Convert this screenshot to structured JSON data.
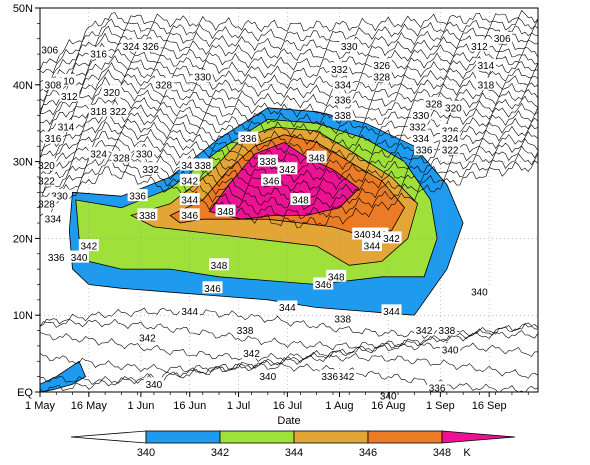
{
  "chart_data": {
    "type": "heatmap",
    "title": "",
    "xlabel": "Date",
    "ylabel": "",
    "x_ticks": [
      "1 May",
      "16 May",
      "1 Jun",
      "16 Jun",
      "1 Jul",
      "16 Jul",
      "1 Aug",
      "16 Aug",
      "1 Sep",
      "16 Sep"
    ],
    "x_tick_days": [
      0,
      15,
      31,
      46,
      61,
      76,
      92,
      107,
      123,
      138
    ],
    "xlim_days": [
      0,
      153
    ],
    "y_ticks": [
      "EQ",
      "10N",
      "20N",
      "30N",
      "40N",
      "50N"
    ],
    "y_tick_values": [
      0,
      10,
      20,
      30,
      40,
      50
    ],
    "ylim": [
      0,
      50
    ],
    "grid": "dotted",
    "colorbar": {
      "unit": "K",
      "labels": [
        340,
        342,
        344,
        346,
        348
      ],
      "bands": [
        {
          "from": 340,
          "to": 342,
          "color": "#1e9bef"
        },
        {
          "from": 342,
          "to": 344,
          "color": "#9fe13a"
        },
        {
          "from": 344,
          "to": 346,
          "color": "#e3a535"
        },
        {
          "from": 346,
          "to": 348,
          "color": "#ec7b25"
        },
        {
          "from": 348,
          "to": 350,
          "color": "#ec1292"
        }
      ],
      "below_color": "#ffffff",
      "above_color": "#ec1292"
    },
    "filled_regions": [
      {
        "level": 340,
        "points": [
          [
            10,
            26
          ],
          [
            25,
            25.5
          ],
          [
            40,
            28
          ],
          [
            55,
            33
          ],
          [
            70,
            37
          ],
          [
            85,
            36.5
          ],
          [
            100,
            35
          ],
          [
            115,
            32
          ],
          [
            125,
            27
          ],
          [
            130,
            22
          ],
          [
            125,
            16
          ],
          [
            115,
            10
          ],
          [
            100,
            10.5
          ],
          [
            85,
            11
          ],
          [
            70,
            12
          ],
          [
            55,
            12.5
          ],
          [
            40,
            13
          ],
          [
            25,
            13.5
          ],
          [
            15,
            14
          ],
          [
            10,
            16
          ],
          [
            9,
            21
          ]
        ]
      },
      {
        "level": 342,
        "points": [
          [
            11,
            25
          ],
          [
            25,
            24
          ],
          [
            40,
            26.5
          ],
          [
            55,
            31.5
          ],
          [
            70,
            35.5
          ],
          [
            85,
            35
          ],
          [
            100,
            33
          ],
          [
            112,
            30
          ],
          [
            120,
            25
          ],
          [
            122,
            20
          ],
          [
            118,
            15
          ],
          [
            105,
            15
          ],
          [
            85,
            14
          ],
          [
            70,
            14.5
          ],
          [
            55,
            15
          ],
          [
            40,
            16
          ],
          [
            25,
            16
          ],
          [
            15,
            17
          ],
          [
            12,
            20
          ]
        ]
      },
      {
        "level": 344,
        "points": [
          [
            28,
            23
          ],
          [
            40,
            24.5
          ],
          [
            52,
            28.5
          ],
          [
            62,
            33
          ],
          [
            72,
            34.5
          ],
          [
            85,
            34
          ],
          [
            95,
            31.5
          ],
          [
            108,
            28
          ],
          [
            116,
            24.5
          ],
          [
            113,
            20
          ],
          [
            105,
            17
          ],
          [
            95,
            16.5
          ],
          [
            85,
            19
          ],
          [
            75,
            19.5
          ],
          [
            65,
            20
          ],
          [
            55,
            20.5
          ],
          [
            45,
            21
          ],
          [
            35,
            21.5
          ]
        ]
      },
      {
        "level": 346,
        "points": [
          [
            40,
            23
          ],
          [
            50,
            25
          ],
          [
            58,
            29
          ],
          [
            66,
            32
          ],
          [
            75,
            33.5
          ],
          [
            85,
            32.5
          ],
          [
            95,
            30
          ],
          [
            105,
            27.5
          ],
          [
            112,
            24
          ],
          [
            108,
            21
          ],
          [
            98,
            20.5
          ],
          [
            90,
            21.5
          ],
          [
            80,
            22
          ],
          [
            70,
            22.5
          ],
          [
            60,
            22.5
          ],
          [
            50,
            22.5
          ],
          [
            43,
            22
          ]
        ]
      },
      {
        "level": 348,
        "points": [
          [
            52,
            23.5
          ],
          [
            58,
            27
          ],
          [
            66,
            31
          ],
          [
            75,
            32.5
          ],
          [
            82,
            30.5
          ],
          [
            90,
            29
          ],
          [
            98,
            26.5
          ],
          [
            92,
            24
          ],
          [
            82,
            23
          ],
          [
            72,
            23
          ],
          [
            62,
            22.5
          ]
        ]
      },
      {
        "level": 340,
        "points": [
          [
            0,
            1
          ],
          [
            5,
            2
          ],
          [
            12,
            4
          ],
          [
            14,
            2
          ],
          [
            10,
            1
          ],
          [
            4,
            0.3
          ],
          [
            0,
            0
          ]
        ]
      }
    ],
    "contour_labels": [
      {
        "text": "306",
        "day": 3,
        "lat": 44.5
      },
      {
        "text": "316",
        "day": 18,
        "lat": 44
      },
      {
        "text": "324",
        "day": 28,
        "lat": 45
      },
      {
        "text": "326",
        "day": 34,
        "lat": 45
      },
      {
        "text": "330",
        "day": 95,
        "lat": 45
      },
      {
        "text": "326",
        "day": 105,
        "lat": 42.5
      },
      {
        "text": "328",
        "day": 105,
        "lat": 41
      },
      {
        "text": "312",
        "day": 135,
        "lat": 45
      },
      {
        "text": "306",
        "day": 142,
        "lat": 46
      },
      {
        "text": "314",
        "day": 137,
        "lat": 42.5
      },
      {
        "text": "318",
        "day": 137,
        "lat": 40
      },
      {
        "text": "310",
        "day": 8,
        "lat": 40.5
      },
      {
        "text": "308",
        "day": 4,
        "lat": 40
      },
      {
        "text": "312",
        "day": 9,
        "lat": 38.5
      },
      {
        "text": "320",
        "day": 22,
        "lat": 39
      },
      {
        "text": "318",
        "day": 18,
        "lat": 36.5
      },
      {
        "text": "322",
        "day": 24,
        "lat": 36.5
      },
      {
        "text": "328",
        "day": 38,
        "lat": 40
      },
      {
        "text": "330",
        "day": 50,
        "lat": 41
      },
      {
        "text": "316",
        "day": 4,
        "lat": 33
      },
      {
        "text": "314",
        "day": 8,
        "lat": 34.5
      },
      {
        "text": "324",
        "day": 18,
        "lat": 31
      },
      {
        "text": "328",
        "day": 25,
        "lat": 30.5
      },
      {
        "text": "330",
        "day": 32,
        "lat": 31
      },
      {
        "text": "332",
        "day": 34,
        "lat": 29
      },
      {
        "text": "320",
        "day": 2,
        "lat": 29.5
      },
      {
        "text": "322",
        "day": 2,
        "lat": 27.5
      },
      {
        "text": "330",
        "day": 6,
        "lat": 25.5
      },
      {
        "text": "328",
        "day": 2,
        "lat": 24.5
      },
      {
        "text": "334",
        "day": 4,
        "lat": 22.5
      },
      {
        "text": "336",
        "day": 30,
        "lat": 25.5
      },
      {
        "text": "338",
        "day": 33,
        "lat": 23
      },
      {
        "text": "336",
        "day": 5,
        "lat": 17.5
      },
      {
        "text": "340",
        "day": 12,
        "lat": 17.5
      },
      {
        "text": "342",
        "day": 15,
        "lat": 19
      },
      {
        "text": "340",
        "day": 46,
        "lat": 29.5
      },
      {
        "text": "342",
        "day": 46,
        "lat": 27.5
      },
      {
        "text": "344",
        "day": 46,
        "lat": 25
      },
      {
        "text": "346",
        "day": 46,
        "lat": 23
      },
      {
        "text": "348",
        "day": 57,
        "lat": 23.5
      },
      {
        "text": "348",
        "day": 55,
        "lat": 16.5
      },
      {
        "text": "346",
        "day": 53,
        "lat": 13.5
      },
      {
        "text": "344",
        "day": 46,
        "lat": 10.5
      },
      {
        "text": "342",
        "day": 33,
        "lat": 7
      },
      {
        "text": "342",
        "day": 65,
        "lat": 5
      },
      {
        "text": "340",
        "day": 35,
        "lat": 1
      },
      {
        "text": "340",
        "day": 70,
        "lat": 2
      },
      {
        "text": "342",
        "day": 94,
        "lat": 2
      },
      {
        "text": "340",
        "day": 107,
        "lat": -0.5
      },
      {
        "text": "344",
        "day": 76,
        "lat": 11
      },
      {
        "text": "344",
        "day": 108,
        "lat": 10.5
      },
      {
        "text": "342",
        "day": 118,
        "lat": 8
      },
      {
        "text": "340",
        "day": 126,
        "lat": 5.5
      },
      {
        "text": "346",
        "day": 87,
        "lat": 14
      },
      {
        "text": "348",
        "day": 91,
        "lat": 15
      },
      {
        "text": "348",
        "day": 85,
        "lat": 30.5
      },
      {
        "text": "348",
        "day": 80,
        "lat": 25
      },
      {
        "text": "346",
        "day": 71,
        "lat": 27.5
      },
      {
        "text": "342",
        "day": 76,
        "lat": 29
      },
      {
        "text": "346",
        "day": 104,
        "lat": 20.5
      },
      {
        "text": "344",
        "day": 102,
        "lat": 19
      },
      {
        "text": "342",
        "day": 108,
        "lat": 20
      },
      {
        "text": "340",
        "day": 99,
        "lat": 20.5
      },
      {
        "text": "338",
        "day": 70,
        "lat": 30
      },
      {
        "text": "336",
        "day": 64,
        "lat": 33
      },
      {
        "text": "332",
        "day": 92,
        "lat": 42
      },
      {
        "text": "334",
        "day": 93,
        "lat": 40
      },
      {
        "text": "336",
        "day": 93,
        "lat": 38
      },
      {
        "text": "338",
        "day": 93,
        "lat": 36
      },
      {
        "text": "330",
        "day": 117,
        "lat": 36
      },
      {
        "text": "332",
        "day": 116,
        "lat": 34.5
      },
      {
        "text": "334",
        "day": 117,
        "lat": 33
      },
      {
        "text": "336",
        "day": 118,
        "lat": 31.5
      },
      {
        "text": "328",
        "day": 121,
        "lat": 37.5
      },
      {
        "text": "326",
        "day": 126,
        "lat": 34
      },
      {
        "text": "324",
        "day": 126,
        "lat": 33
      },
      {
        "text": "322",
        "day": 126,
        "lat": 31.5
      },
      {
        "text": "320",
        "day": 127,
        "lat": 37
      },
      {
        "text": "338",
        "day": 50,
        "lat": 29.5
      },
      {
        "text": "338",
        "day": 63,
        "lat": 8
      },
      {
        "text": "338",
        "day": 93,
        "lat": 9.5
      },
      {
        "text": "338",
        "day": 125,
        "lat": 8
      },
      {
        "text": "336",
        "day": 89,
        "lat": 2
      },
      {
        "text": "336",
        "day": 122,
        "lat": 0.5
      },
      {
        "text": "340",
        "day": 135,
        "lat": 13
      }
    ]
  }
}
